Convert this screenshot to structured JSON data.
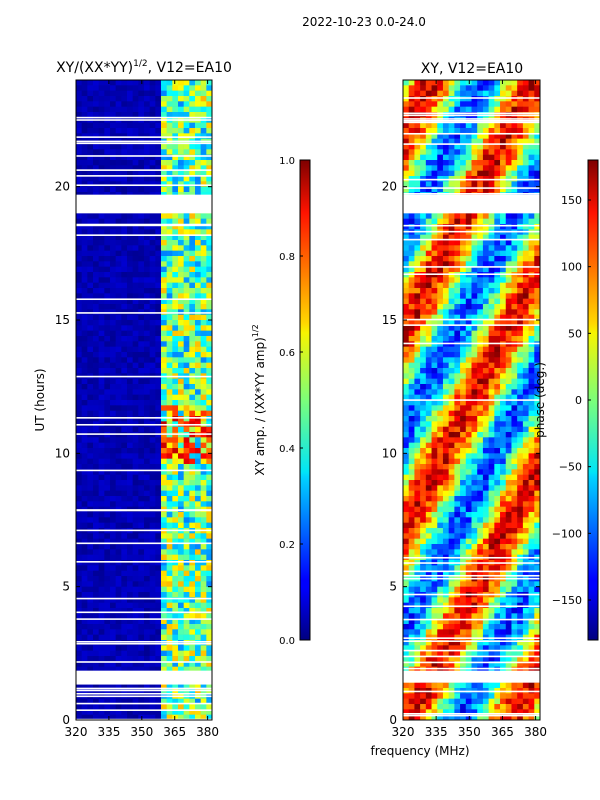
{
  "suptitle": "2022-10-23 0.0-24.0",
  "xlabel_shared": "frequency (MHz)",
  "chart_data": [
    {
      "type": "heatmap",
      "title_main": "XY/(XX*YY)",
      "title_sup": "1/2",
      "title_tail": ", V12=EA10",
      "ylabel": "UT (hours)",
      "x_ticks": [
        320,
        335,
        350,
        365,
        380
      ],
      "xlim": [
        320,
        382
      ],
      "y_ticks": [
        0,
        5,
        10,
        15,
        20
      ],
      "ylim": [
        0,
        24
      ],
      "gap_bands_hours": [
        [
          1.4,
          1.85
        ],
        [
          19.0,
          19.7
        ]
      ],
      "colorbar": {
        "label_main": "XY amp. / (XX*YY amp)",
        "label_sup": "1/2",
        "ticks": [
          "0.0",
          "0.2",
          "0.4",
          "0.6",
          "0.8",
          "1.0"
        ],
        "range": [
          0,
          1
        ],
        "colormap": "jet"
      }
    },
    {
      "type": "heatmap",
      "title_main": "XY, V12=EA10",
      "x_ticks": [
        320,
        335,
        350,
        365,
        380
      ],
      "xlim": [
        320,
        382
      ],
      "y_ticks": [
        0,
        5,
        10,
        15,
        20
      ],
      "ylim": [
        0,
        24
      ],
      "gap_bands_hours": [
        [
          1.4,
          1.85
        ],
        [
          19.0,
          19.7
        ]
      ],
      "colorbar": {
        "label_main": "phase (deg.)",
        "ticks": [
          "150",
          "100",
          "50",
          "0",
          "−50",
          "−100",
          "−150"
        ],
        "tick_values": [
          150,
          100,
          50,
          0,
          -50,
          -100,
          -150
        ],
        "range": [
          -180,
          180
        ],
        "colormap": "jet"
      }
    }
  ],
  "colors": {
    "background": "#ffffff",
    "axis": "#000000",
    "gap": "#ffffff"
  }
}
